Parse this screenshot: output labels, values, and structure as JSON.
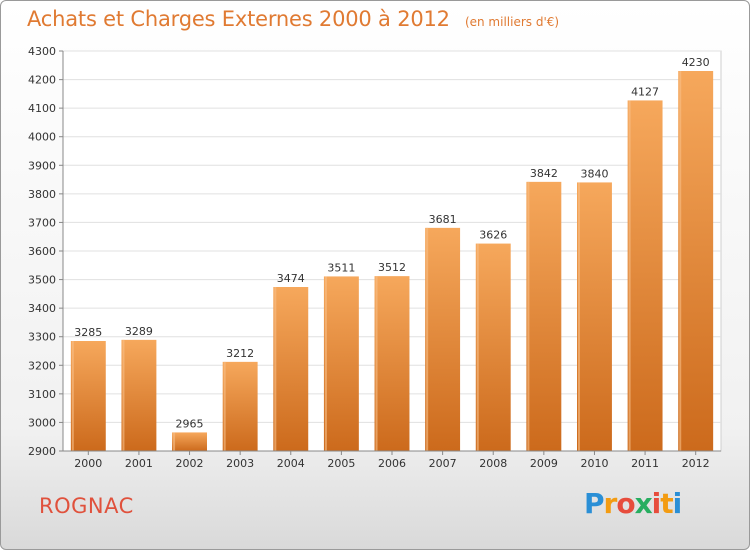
{
  "page": {
    "title": "Achats et Charges Externes 2000 à 2012",
    "subtitle": "(en milliers d'€)",
    "commune": "ROGNAC",
    "logo_letters": [
      "P",
      "r",
      "o",
      "x",
      "i",
      "t",
      "i"
    ],
    "logo_colors": [
      "#2a8fd6",
      "#f39c12",
      "#e74c3c",
      "#27ae60",
      "#e74c3c",
      "#f39c12",
      "#2a8fd6"
    ]
  },
  "colors": {
    "title": "#e07a32",
    "commune": "#e0513c",
    "bar_top": "#f6a85c",
    "bar_bottom": "#cc6a1c",
    "grid": "#e0e0e0"
  },
  "chart_data": {
    "type": "bar",
    "title": "Achats et Charges Externes 2000 à 2012",
    "subtitle": "(en milliers d'€)",
    "categories": [
      "2000",
      "2001",
      "2002",
      "2003",
      "2004",
      "2005",
      "2006",
      "2007",
      "2008",
      "2009",
      "2010",
      "2011",
      "2012"
    ],
    "values": [
      3285,
      3289,
      2965,
      3212,
      3474,
      3511,
      3512,
      3681,
      3626,
      3842,
      3840,
      4127,
      4230
    ],
    "ylim": [
      2900,
      4300
    ],
    "yticks": [
      2900,
      3000,
      3100,
      3200,
      3300,
      3400,
      3500,
      3600,
      3700,
      3800,
      3900,
      4000,
      4100,
      4200,
      4300
    ],
    "grid": true,
    "xlabel": "",
    "ylabel": ""
  }
}
